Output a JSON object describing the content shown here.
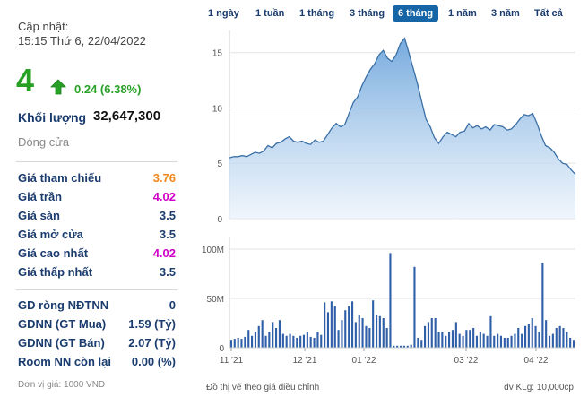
{
  "summary": {
    "updated_label": "Cập nhật:",
    "updated_time": "15:15 Thứ 6, 22/04/2022",
    "price": "4",
    "change": "0.24 (6.38%)",
    "volume_label": "Khối lượng",
    "volume_value": "32,647,300",
    "close_label": "Đóng cửa"
  },
  "price_stats": [
    {
      "label": "Giá tham chiếu",
      "value": "3.76",
      "color": "#f0871e"
    },
    {
      "label": "Giá trần",
      "value": "4.02",
      "color": "#d000c8"
    },
    {
      "label": "Giá sàn",
      "value": "3.5",
      "color": "#1a3c6e"
    },
    {
      "label": "Giá mở cửa",
      "value": "3.5",
      "color": "#1a3c6e"
    },
    {
      "label": "Giá cao nhất",
      "value": "4.02",
      "color": "#d000c8"
    },
    {
      "label": "Giá thấp nhất",
      "value": "3.5",
      "color": "#1a3c6e"
    }
  ],
  "foreign_stats": [
    {
      "label": "GD ròng NĐTNN",
      "value": "0"
    },
    {
      "label": "GDNN (GT Mua)",
      "value": "1.59 (Tỷ)"
    },
    {
      "label": "GDNN (GT Bán)",
      "value": "2.07 (Tỷ)"
    },
    {
      "label": "Room NN còn lại",
      "value": "0.00 (%)"
    }
  ],
  "unit_note": "Đơn vị giá: 1000 VNĐ",
  "tabs": [
    {
      "label": "1 ngày",
      "active": false
    },
    {
      "label": "1 tuần",
      "active": false
    },
    {
      "label": "1 tháng",
      "active": false
    },
    {
      "label": "3 tháng",
      "active": false
    },
    {
      "label": "6 tháng",
      "active": true
    },
    {
      "label": "1 năm",
      "active": false
    },
    {
      "label": "3 năm",
      "active": false
    },
    {
      "label": "Tất cả",
      "active": false
    }
  ],
  "footer": {
    "left": "Đồ thị vẽ theo giá điều chỉnh",
    "right": "đv KLg: 10,000cp"
  },
  "colors": {
    "up": "#26a126",
    "area_fill_top": "#7fb2e0",
    "area_line": "#3a6fa5",
    "volume_bar": "#2f5fa8"
  },
  "chart_data": [
    {
      "type": "area",
      "name": "price",
      "ylim": [
        0,
        17
      ],
      "yticks": [
        0,
        5,
        10,
        15
      ],
      "grid": true,
      "xlabels": [
        "11 '21",
        "12 '21",
        "01 '22",
        "03 '22",
        "04 '22"
      ],
      "values": [
        5.5,
        5.6,
        5.6,
        5.7,
        5.6,
        5.8,
        6.0,
        5.9,
        6.1,
        6.6,
        6.4,
        6.8,
        6.9,
        7.2,
        7.4,
        7.0,
        6.9,
        7.0,
        6.8,
        6.7,
        7.1,
        6.9,
        7.0,
        7.6,
        8.2,
        8.6,
        8.3,
        8.5,
        9.5,
        10.5,
        11.0,
        12.0,
        12.8,
        13.5,
        14.0,
        14.8,
        15.2,
        14.5,
        14.2,
        14.8,
        15.8,
        16.3,
        15.0,
        13.6,
        12.2,
        10.6,
        9.0,
        8.3,
        7.3,
        6.8,
        7.4,
        7.8,
        7.6,
        7.4,
        7.8,
        7.9,
        8.6,
        8.2,
        8.4,
        8.1,
        8.3,
        8.0,
        8.5,
        8.4,
        8.3,
        8.0,
        8.1,
        8.5,
        9.0,
        9.4,
        9.3,
        9.5,
        8.6,
        7.5,
        6.6,
        6.4,
        6.0,
        5.4,
        5.0,
        4.9,
        4.4,
        4.0
      ]
    },
    {
      "type": "bar",
      "name": "volume",
      "ylim": [
        0,
        100
      ],
      "yticks": [
        0,
        50,
        100
      ],
      "ytick_labels": [
        "0",
        "50M",
        "100M"
      ],
      "values": [
        8,
        9,
        10,
        9,
        11,
        18,
        12,
        16,
        22,
        28,
        12,
        16,
        26,
        20,
        28,
        14,
        12,
        14,
        12,
        10,
        12,
        13,
        16,
        11,
        10,
        16,
        13,
        46,
        36,
        47,
        42,
        18,
        28,
        38,
        42,
        47,
        26,
        33,
        30,
        22,
        20,
        48,
        33,
        32,
        30,
        20,
        96,
        2,
        2,
        2,
        2,
        2,
        3,
        82,
        10,
        8,
        22,
        26,
        30,
        30,
        16,
        16,
        12,
        16,
        18,
        26,
        14,
        12,
        18,
        18,
        20,
        12,
        16,
        14,
        12,
        32,
        12,
        14,
        12,
        10,
        10,
        12,
        14,
        20,
        14,
        22,
        24,
        30,
        22,
        16,
        86,
        28,
        12,
        14,
        20,
        22,
        20,
        16,
        10,
        8
      ]
    }
  ]
}
